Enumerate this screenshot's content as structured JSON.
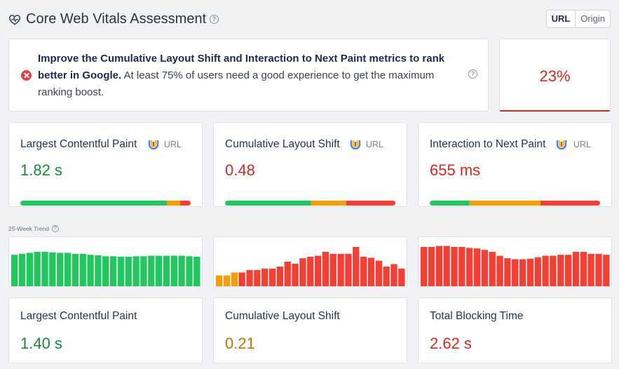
{
  "header": {
    "title": "Core Web Vitals Assessment",
    "toggle": [
      "URL",
      "Origin"
    ],
    "active_toggle": "URL"
  },
  "assessment": {
    "strong_text": "Improve the Cumulative Layout Shift and Interaction to Next Paint metrics to rank better in Google.",
    "rest_text": " At least 75% of users need a good experience to get the maximum ranking boost.",
    "score": "23%"
  },
  "metrics": [
    {
      "label": "Largest Contentful Paint",
      "tag": "URL",
      "value": "1.82 s",
      "status": "good",
      "distribution": [
        0.86,
        0.08,
        0.06
      ]
    },
    {
      "label": "Cumulative Layout Shift",
      "tag": "URL",
      "value": "0.48",
      "status": "poor",
      "distribution": [
        0.5,
        0.21,
        0.29
      ]
    },
    {
      "label": "Interaction to Next Paint",
      "tag": "URL",
      "value": "655 ms",
      "status": "poor",
      "distribution": [
        0.23,
        0.42,
        0.35
      ]
    }
  ],
  "trend_label": "25-Week Trend",
  "trends": [
    {
      "values": [
        0.64,
        0.66,
        0.68,
        0.7,
        0.7,
        0.69,
        0.68,
        0.68,
        0.66,
        0.66,
        0.64,
        0.63,
        0.61,
        0.61,
        0.6,
        0.6,
        0.61,
        0.61,
        0.62,
        0.62,
        0.62,
        0.62,
        0.62,
        0.61,
        0.6
      ],
      "colors": [
        "good",
        "good",
        "good",
        "good",
        "good",
        "good",
        "good",
        "good",
        "good",
        "good",
        "good",
        "good",
        "good",
        "good",
        "good",
        "good",
        "good",
        "good",
        "good",
        "good",
        "good",
        "good",
        "good",
        "good",
        "good"
      ]
    },
    {
      "values": [
        0.22,
        0.22,
        0.28,
        0.28,
        0.33,
        0.33,
        0.36,
        0.36,
        0.4,
        0.5,
        0.46,
        0.57,
        0.6,
        0.62,
        0.7,
        0.66,
        0.66,
        0.66,
        0.8,
        0.6,
        0.58,
        0.52,
        0.4,
        0.45,
        0.36
      ],
      "colors": [
        "ni",
        "ni",
        "ni",
        "poor",
        "poor",
        "poor",
        "poor",
        "poor",
        "poor",
        "poor",
        "poor",
        "poor",
        "poor",
        "poor",
        "poor",
        "poor",
        "poor",
        "poor",
        "poor",
        "poor",
        "poor",
        "poor",
        "poor",
        "poor",
        "poor"
      ]
    },
    {
      "values": [
        0.8,
        0.8,
        0.82,
        0.82,
        0.8,
        0.8,
        0.78,
        0.77,
        0.74,
        0.7,
        0.62,
        0.57,
        0.55,
        0.55,
        0.56,
        0.59,
        0.62,
        0.62,
        0.64,
        0.64,
        0.7,
        0.7,
        0.66,
        0.66,
        0.64
      ],
      "colors": [
        "poor",
        "poor",
        "poor",
        "poor",
        "poor",
        "poor",
        "poor",
        "poor",
        "poor",
        "poor",
        "poor",
        "poor",
        "poor",
        "poor",
        "poor",
        "poor",
        "poor",
        "poor",
        "poor",
        "poor",
        "poor",
        "poor",
        "poor",
        "poor",
        "poor"
      ]
    }
  ],
  "lab_metrics": [
    {
      "label": "Largest Contentful Paint",
      "value": "1.40 s",
      "status": "good"
    },
    {
      "label": "Cumulative Layout Shift",
      "value": "0.21",
      "status": "ni"
    },
    {
      "label": "Total Blocking Time",
      "value": "2.62 s",
      "status": "poor"
    }
  ],
  "colors": {
    "good": "#22c55e",
    "ni": "#f59e0b",
    "poor": "#f43f35",
    "good_text": "#16893a",
    "poor_text": "#d9281e",
    "ni_text": "#c77200"
  }
}
